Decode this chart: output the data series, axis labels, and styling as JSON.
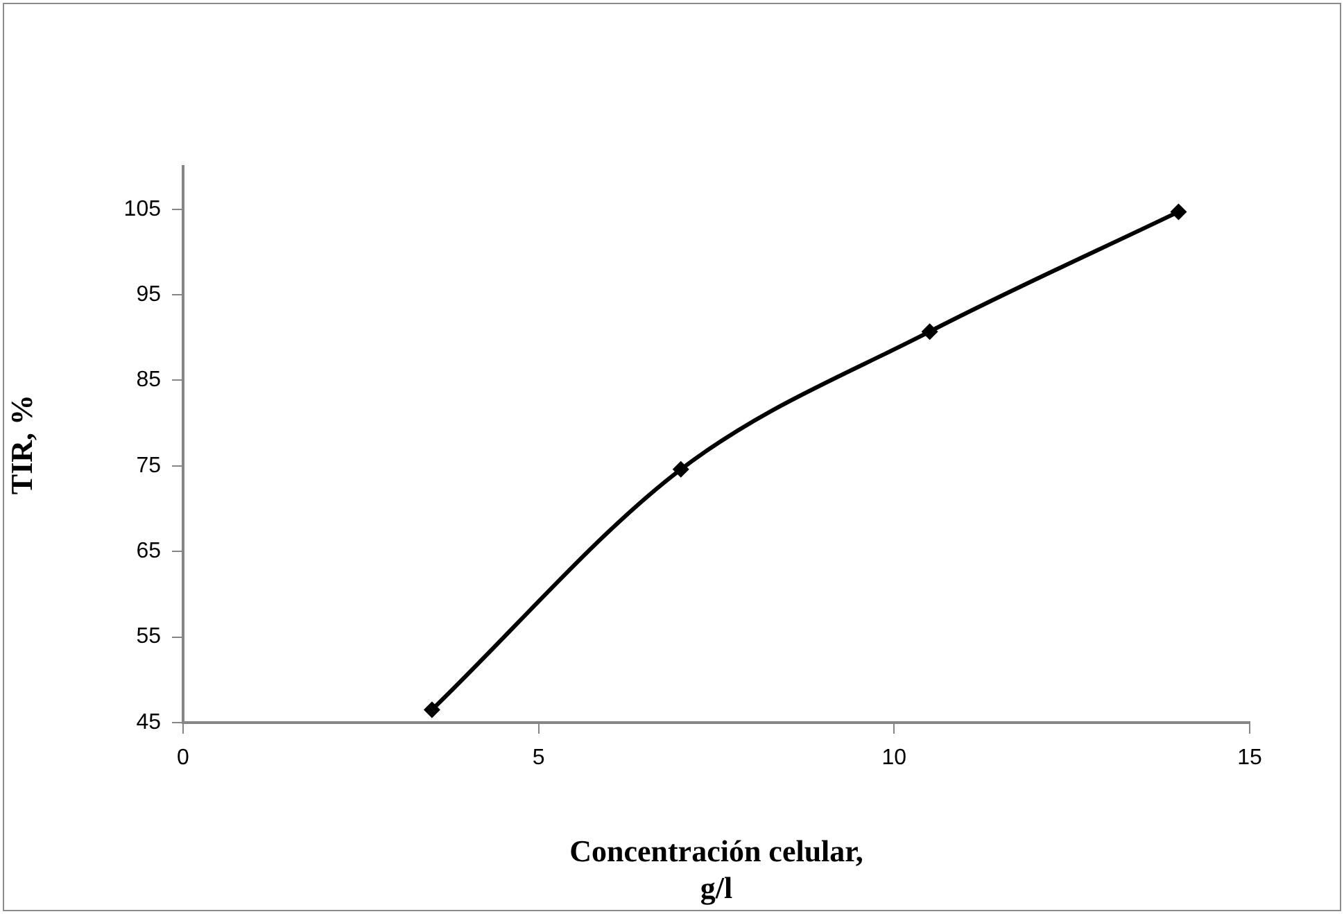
{
  "chart_data": {
    "type": "line",
    "xlabel": "Concentración celular,\ng/l",
    "ylabel": "TIR, %",
    "x": [
      3.5,
      7,
      10.5,
      14
    ],
    "series": [
      {
        "color": "#000000",
        "values": [
          46.5,
          74.6,
          90.7,
          104.7
        ]
      }
    ],
    "xlim": [
      0,
      15
    ],
    "xticks": [
      0,
      5,
      10,
      15
    ],
    "ylim": [
      45,
      110
    ],
    "yticks": [
      45,
      55,
      65,
      75,
      85,
      95,
      105
    ],
    "grid": false,
    "legend": false,
    "marker": "diamond",
    "line_style": "solid"
  }
}
